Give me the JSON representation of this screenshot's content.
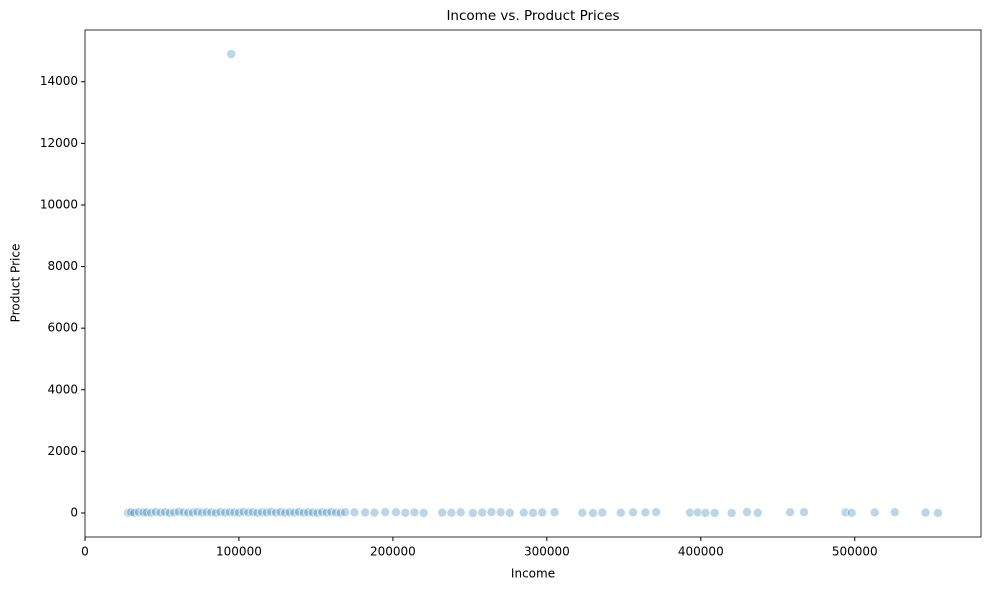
{
  "chart_data": {
    "type": "scatter",
    "title": "Income vs. Product Prices",
    "x_label": "Income",
    "y_label": "Product Price",
    "color": "#1f77b4",
    "x": [
      28000,
      30000,
      32000,
      35000,
      38000,
      40000,
      43000,
      46000,
      49000,
      52000,
      55000,
      58000,
      61000,
      64000,
      67000,
      70000,
      73000,
      76000,
      79000,
      82000,
      85000,
      88000,
      91000,
      94000,
      97000,
      100000,
      103000,
      106000,
      109000,
      112000,
      115000,
      118000,
      121000,
      124000,
      127000,
      130000,
      133000,
      136000,
      139000,
      142000,
      145000,
      148000,
      151000,
      154000,
      157000,
      160000,
      163000,
      166000,
      169000,
      175000,
      182000,
      188000,
      195000,
      202000,
      208000,
      214000,
      220000,
      232000,
      238000,
      244000,
      252000,
      258000,
      264000,
      270000,
      276000,
      285000,
      291000,
      297000,
      305000,
      323000,
      330000,
      336000,
      348000,
      356000,
      364000,
      371000,
      393000,
      398000,
      403000,
      409000,
      420000,
      430000,
      437000,
      458000,
      467000,
      494000,
      498000,
      513000,
      526000,
      546000,
      554000,
      95000
    ],
    "values": [
      10,
      25,
      5,
      30,
      15,
      20,
      8,
      35,
      12,
      28,
      3,
      18,
      40,
      22,
      6,
      14,
      33,
      9,
      26,
      17,
      2,
      31,
      11,
      24,
      19,
      7,
      36,
      13,
      27,
      4,
      21,
      16,
      38,
      10,
      29,
      5,
      23,
      12,
      34,
      8,
      20,
      15,
      3,
      26,
      11,
      32,
      18,
      6,
      25,
      20,
      15,
      10,
      30,
      25,
      5,
      18,
      2,
      12,
      8,
      22,
      0,
      14,
      28,
      20,
      6,
      10,
      3,
      16,
      24,
      5,
      0,
      12,
      8,
      20,
      15,
      25,
      10,
      18,
      4,
      2,
      0,
      30,
      6,
      22,
      28,
      20,
      5,
      18,
      24,
      12,
      0,
      14900
    ],
    "xlim": [
      0,
      582000
    ],
    "ylim": [
      -780,
      15680
    ],
    "xticks": [
      0,
      100000,
      200000,
      300000,
      400000,
      500000
    ],
    "yticks": [
      0,
      2000,
      4000,
      6000,
      8000,
      10000,
      12000,
      14000
    ]
  }
}
